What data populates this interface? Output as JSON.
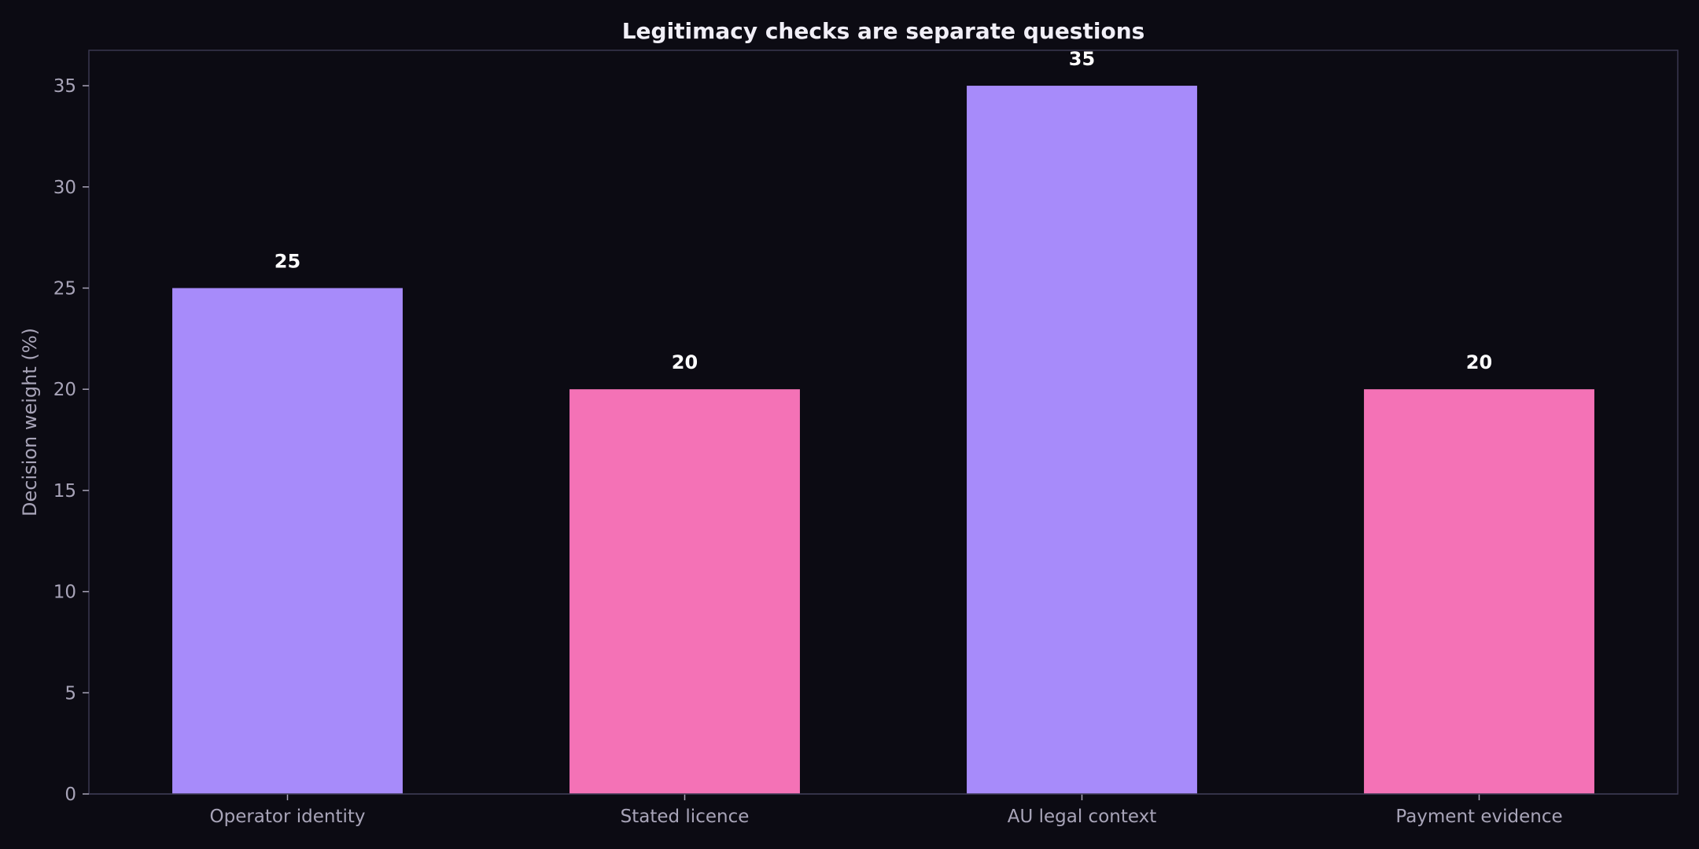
{
  "chart_data": {
    "type": "bar",
    "title": "Legitimacy checks are separate questions",
    "xlabel": "",
    "ylabel": "Decision weight (%)",
    "categories": [
      "Operator identity",
      "Stated licence",
      "AU legal context",
      "Payment evidence"
    ],
    "values": [
      25,
      20,
      35,
      20
    ],
    "data_labels": [
      "25",
      "20",
      "35",
      "20"
    ],
    "bar_colors": [
      "#a78bfa",
      "#f472b6",
      "#a78bfa",
      "#f472b6"
    ],
    "ylim": [
      0,
      36.75
    ],
    "yticks": [
      0,
      5,
      10,
      15,
      20,
      25,
      30,
      35
    ],
    "grid": false,
    "legend": "none"
  },
  "colors": {
    "background": "#0c0b13",
    "axis": "#3a3850",
    "text_muted": "#a8a4b8",
    "title": "#f1eff7"
  }
}
